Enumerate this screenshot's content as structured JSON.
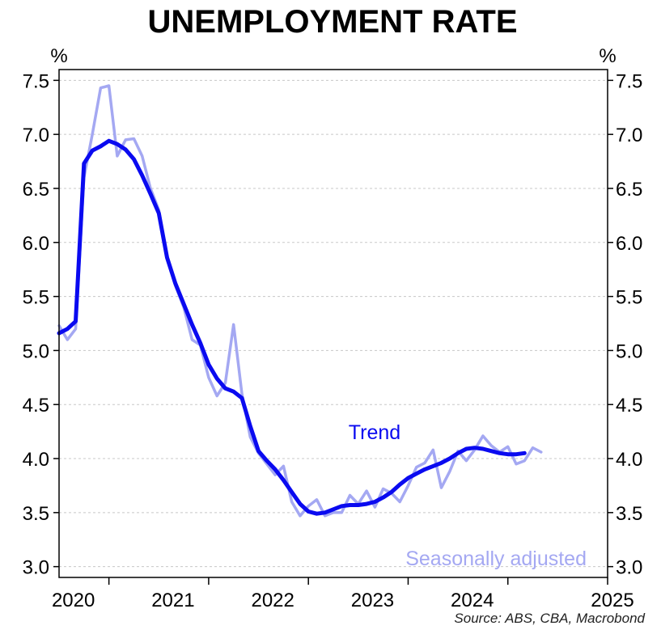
{
  "chart_data": {
    "type": "line",
    "title": "UNEMPLOYMENT RATE",
    "y_unit_left": "%",
    "y_unit_right": "%",
    "ylim": [
      2.9,
      7.6
    ],
    "y_ticks": [
      "3.0",
      "3.5",
      "4.0",
      "4.5",
      "5.0",
      "5.5",
      "6.0",
      "6.5",
      "7.0",
      "7.5"
    ],
    "y_tick_values": [
      3.0,
      3.5,
      4.0,
      4.5,
      5.0,
      5.5,
      6.0,
      6.5,
      7.0,
      7.5
    ],
    "xlim": [
      "2019-07",
      "2025-01"
    ],
    "x_ticks": [
      "2020",
      "2021",
      "2022",
      "2023",
      "2024",
      "2025"
    ],
    "x_tick_values": [
      "2020-01",
      "2021-01",
      "2022-01",
      "2023-01",
      "2024-01",
      "2025-01"
    ],
    "x_tick_labels_between": true,
    "grid": "horizontal dashed",
    "series": [
      {
        "name": "Seasonally adjusted",
        "color": "#a4a8f2",
        "points": [
          [
            "2019-07",
            5.23
          ],
          [
            "2019-08",
            5.1
          ],
          [
            "2019-09",
            5.2
          ],
          [
            "2019-10",
            6.6
          ],
          [
            "2019-11",
            7.0
          ],
          [
            "2019-12",
            7.43
          ],
          [
            "2020-01",
            7.45
          ],
          [
            "2020-02",
            6.8
          ],
          [
            "2020-03",
            6.95
          ],
          [
            "2020-04",
            6.96
          ],
          [
            "2020-05",
            6.8
          ],
          [
            "2020-06",
            6.5
          ],
          [
            "2020-07",
            6.3
          ],
          [
            "2020-08",
            5.85
          ],
          [
            "2020-09",
            5.6
          ],
          [
            "2020-10",
            5.4
          ],
          [
            "2020-11",
            5.1
          ],
          [
            "2020-12",
            5.05
          ],
          [
            "2021-01",
            4.75
          ],
          [
            "2021-02",
            4.58
          ],
          [
            "2021-03",
            4.7
          ],
          [
            "2021-04",
            5.24
          ],
          [
            "2021-05",
            4.6
          ],
          [
            "2021-06",
            4.2
          ],
          [
            "2021-07",
            4.05
          ],
          [
            "2021-08",
            3.95
          ],
          [
            "2021-09",
            3.85
          ],
          [
            "2021-10",
            3.93
          ],
          [
            "2021-11",
            3.6
          ],
          [
            "2021-12",
            3.47
          ],
          [
            "2022-01",
            3.56
          ],
          [
            "2022-02",
            3.62
          ],
          [
            "2022-03",
            3.47
          ],
          [
            "2022-04",
            3.5
          ],
          [
            "2022-05",
            3.5
          ],
          [
            "2022-06",
            3.66
          ],
          [
            "2022-07",
            3.58
          ],
          [
            "2022-08",
            3.7
          ],
          [
            "2022-09",
            3.55
          ],
          [
            "2022-10",
            3.72
          ],
          [
            "2022-11",
            3.68
          ],
          [
            "2022-12",
            3.6
          ],
          [
            "2023-01",
            3.75
          ],
          [
            "2023-02",
            3.92
          ],
          [
            "2023-03",
            3.96
          ],
          [
            "2023-04",
            4.08
          ],
          [
            "2023-05",
            3.73
          ],
          [
            "2023-06",
            3.88
          ],
          [
            "2023-07",
            4.07
          ],
          [
            "2023-08",
            3.98
          ],
          [
            "2023-09",
            4.08
          ],
          [
            "2023-10",
            4.21
          ],
          [
            "2023-11",
            4.12
          ],
          [
            "2023-12",
            4.06
          ],
          [
            "2024-01",
            4.11
          ],
          [
            "2024-02",
            3.95
          ],
          [
            "2024-03",
            3.98
          ],
          [
            "2024-04",
            4.1
          ],
          [
            "2024-05",
            4.06
          ]
        ]
      },
      {
        "name": "Trend",
        "color": "#0a0af0",
        "points": [
          [
            "2019-07",
            5.16
          ],
          [
            "2019-08",
            5.2
          ],
          [
            "2019-09",
            5.27
          ],
          [
            "2019-10",
            6.73
          ],
          [
            "2019-11",
            6.85
          ],
          [
            "2019-12",
            6.89
          ],
          [
            "2020-01",
            6.94
          ],
          [
            "2020-02",
            6.91
          ],
          [
            "2020-03",
            6.86
          ],
          [
            "2020-04",
            6.77
          ],
          [
            "2020-05",
            6.62
          ],
          [
            "2020-06",
            6.45
          ],
          [
            "2020-07",
            6.27
          ],
          [
            "2020-08",
            5.86
          ],
          [
            "2020-09",
            5.62
          ],
          [
            "2020-10",
            5.43
          ],
          [
            "2020-11",
            5.24
          ],
          [
            "2020-12",
            5.07
          ],
          [
            "2021-01",
            4.87
          ],
          [
            "2021-02",
            4.74
          ],
          [
            "2021-03",
            4.65
          ],
          [
            "2021-04",
            4.62
          ],
          [
            "2021-05",
            4.56
          ],
          [
            "2021-06",
            4.3
          ],
          [
            "2021-07",
            4.07
          ],
          [
            "2021-08",
            3.98
          ],
          [
            "2021-09",
            3.9
          ],
          [
            "2021-10",
            3.8
          ],
          [
            "2021-11",
            3.69
          ],
          [
            "2021-12",
            3.58
          ],
          [
            "2022-01",
            3.51
          ],
          [
            "2022-02",
            3.49
          ],
          [
            "2022-03",
            3.5
          ],
          [
            "2022-04",
            3.53
          ],
          [
            "2022-05",
            3.56
          ],
          [
            "2022-06",
            3.57
          ],
          [
            "2022-07",
            3.57
          ],
          [
            "2022-08",
            3.58
          ],
          [
            "2022-09",
            3.6
          ],
          [
            "2022-10",
            3.64
          ],
          [
            "2022-11",
            3.69
          ],
          [
            "2022-12",
            3.76
          ],
          [
            "2023-01",
            3.82
          ],
          [
            "2023-02",
            3.86
          ],
          [
            "2023-03",
            3.9
          ],
          [
            "2023-04",
            3.93
          ],
          [
            "2023-05",
            3.96
          ],
          [
            "2023-06",
            4.0
          ],
          [
            "2023-07",
            4.05
          ],
          [
            "2023-08",
            4.09
          ],
          [
            "2023-09",
            4.1
          ],
          [
            "2023-10",
            4.09
          ],
          [
            "2023-11",
            4.07
          ],
          [
            "2023-12",
            4.05
          ],
          [
            "2024-01",
            4.04
          ],
          [
            "2024-02",
            4.04
          ],
          [
            "2024-03",
            4.05
          ]
        ]
      }
    ],
    "annotations": [
      {
        "text": "Trend",
        "color": "#0a0af0",
        "anchor": "middle"
      },
      {
        "text": "Seasonally adjusted",
        "color": "#a4a8f2",
        "anchor": "end"
      }
    ],
    "source": "Source: ABS, CBA, Macrobond"
  }
}
